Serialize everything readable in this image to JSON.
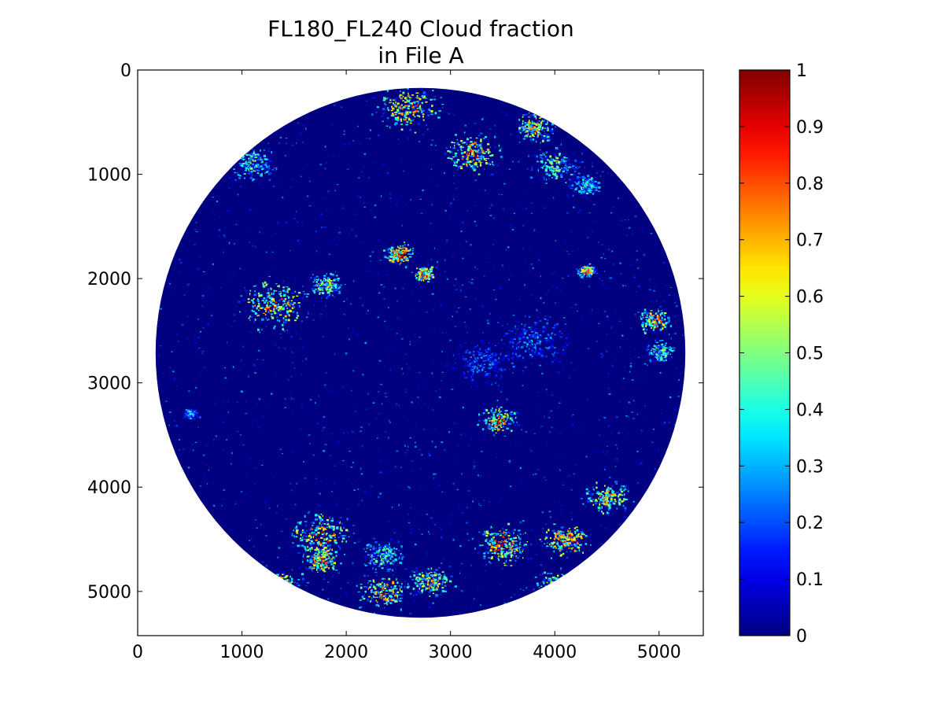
{
  "chart_data": {
    "type": "heatmap",
    "title_lines": [
      "FL180_FL240 Cloud fraction",
      "in File A"
    ],
    "colormap": "jet",
    "xlim": [
      0,
      5424
    ],
    "ylim": [
      0,
      5424
    ],
    "y_inverted": true,
    "x_ticks": [
      0,
      1000,
      2000,
      3000,
      4000,
      5000
    ],
    "y_ticks": [
      0,
      1000,
      2000,
      3000,
      4000,
      5000
    ],
    "disk": {
      "center": [
        2712,
        2712
      ],
      "radius": 2540
    },
    "colorbar": {
      "range": [
        0,
        1
      ],
      "ticks": [
        "0",
        "0.1",
        "0.2",
        "0.3",
        "0.4",
        "0.5",
        "0.6",
        "0.7",
        "0.8",
        "0.9",
        "1"
      ]
    },
    "cloud_clusters": [
      {
        "x": 2600,
        "y": 350,
        "spread": 260,
        "value": 0.85
      },
      {
        "x": 3200,
        "y": 800,
        "spread": 230,
        "value": 0.9
      },
      {
        "x": 3800,
        "y": 550,
        "spread": 180,
        "value": 0.8
      },
      {
        "x": 4000,
        "y": 900,
        "spread": 200,
        "value": 0.6
      },
      {
        "x": 4300,
        "y": 1100,
        "spread": 140,
        "value": 0.5
      },
      {
        "x": 1100,
        "y": 900,
        "spread": 200,
        "value": 0.55
      },
      {
        "x": 2500,
        "y": 1760,
        "spread": 120,
        "value": 0.95
      },
      {
        "x": 2750,
        "y": 1950,
        "spread": 90,
        "value": 0.95
      },
      {
        "x": 4300,
        "y": 1920,
        "spread": 80,
        "value": 0.85
      },
      {
        "x": 1300,
        "y": 2250,
        "spread": 280,
        "value": 0.9
      },
      {
        "x": 1800,
        "y": 2050,
        "spread": 130,
        "value": 0.7
      },
      {
        "x": 4950,
        "y": 2400,
        "spread": 130,
        "value": 0.9
      },
      {
        "x": 5000,
        "y": 2700,
        "spread": 120,
        "value": 0.6
      },
      {
        "x": 3450,
        "y": 3350,
        "spread": 160,
        "value": 0.9
      },
      {
        "x": 500,
        "y": 3280,
        "spread": 60,
        "value": 0.5
      },
      {
        "x": 1750,
        "y": 4450,
        "spread": 260,
        "value": 0.9
      },
      {
        "x": 1750,
        "y": 4700,
        "spread": 150,
        "value": 0.95
      },
      {
        "x": 1350,
        "y": 4950,
        "spread": 200,
        "value": 0.85
      },
      {
        "x": 2350,
        "y": 4650,
        "spread": 180,
        "value": 0.6
      },
      {
        "x": 2350,
        "y": 5000,
        "spread": 200,
        "value": 0.95
      },
      {
        "x": 2800,
        "y": 4900,
        "spread": 180,
        "value": 0.8
      },
      {
        "x": 3500,
        "y": 4550,
        "spread": 230,
        "value": 0.9
      },
      {
        "x": 4100,
        "y": 4500,
        "spread": 200,
        "value": 0.95
      },
      {
        "x": 4500,
        "y": 4100,
        "spread": 180,
        "value": 0.8
      },
      {
        "x": 4000,
        "y": 4950,
        "spread": 180,
        "value": 0.7
      },
      {
        "x": 3800,
        "y": 2600,
        "spread": 300,
        "value": 0.35
      },
      {
        "x": 3300,
        "y": 2800,
        "spread": 250,
        "value": 0.3
      }
    ]
  }
}
